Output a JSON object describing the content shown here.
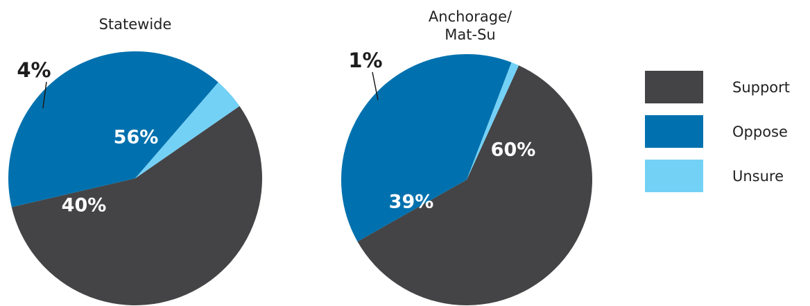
{
  "chart_data": [
    {
      "type": "pie",
      "title": "Statewide",
      "slices": [
        {
          "label": "Support",
          "value": 56,
          "text": "56%"
        },
        {
          "label": "Oppose",
          "value": 40,
          "text": "40%"
        },
        {
          "label": "Unsure",
          "value": 4,
          "text": "4%"
        }
      ]
    },
    {
      "type": "pie",
      "title": "Anchorage/\nMat-Su",
      "slices": [
        {
          "label": "Support",
          "value": 60,
          "text": "60%"
        },
        {
          "label": "Oppose",
          "value": 39,
          "text": "39%"
        },
        {
          "label": "Unsure",
          "value": 1,
          "text": "1%"
        }
      ]
    }
  ],
  "legend": [
    {
      "label": "Support",
      "color": "#444446"
    },
    {
      "label": "Oppose",
      "color": "#0071ae"
    },
    {
      "label": "Unsure",
      "color": "#74d1f6"
    }
  ]
}
